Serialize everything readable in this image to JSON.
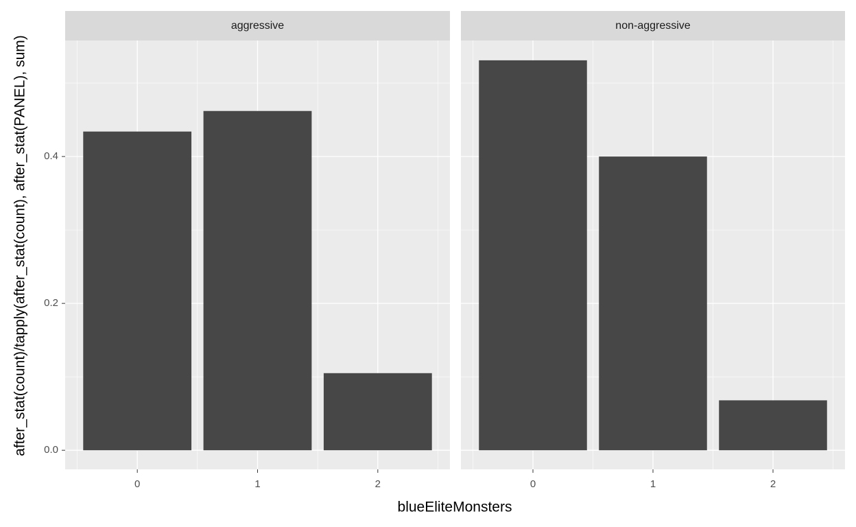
{
  "chart_data": {
    "type": "bar",
    "x_label": "blueEliteMonsters",
    "y_label": "after_stat(count)/tapply(after_stat(count), after_stat(PANEL), sum)",
    "color": "#474747",
    "ylim": [
      -0.026,
      0.558
    ],
    "yticks": [
      {
        "value": 0,
        "label": "0.0"
      },
      {
        "value": 0.2,
        "label": "0.2"
      },
      {
        "value": 0.4,
        "label": "0.4"
      }
    ],
    "grid": true,
    "facets": [
      {
        "title": "aggressive",
        "categories": [
          "0",
          "1",
          "2"
        ],
        "values": [
          0.434,
          0.462,
          0.105
        ]
      },
      {
        "title": "non-aggressive",
        "categories": [
          "0",
          "1",
          "2"
        ],
        "values": [
          0.531,
          0.4,
          0.068
        ]
      }
    ]
  }
}
